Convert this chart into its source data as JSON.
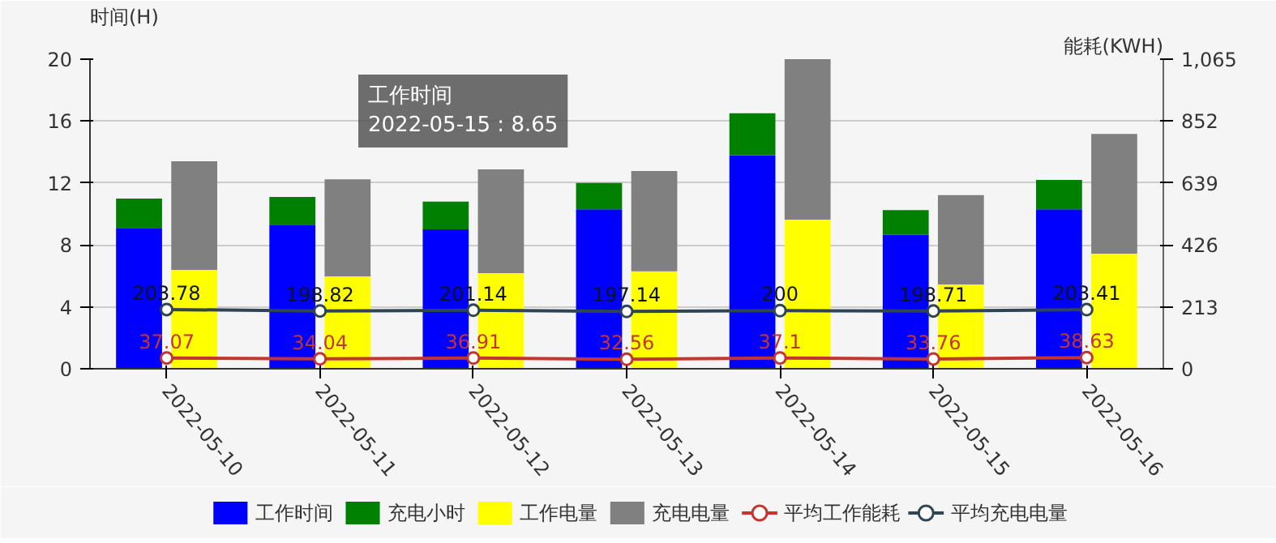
{
  "chart_data": {
    "type": "bar",
    "stacked": true,
    "ylabel": "时间(H)",
    "y2label": "能耗(KWH)",
    "categories": [
      "2022-05-10",
      "2022-05-11",
      "2022-05-12",
      "2022-05-13",
      "2022-05-14",
      "2022-05-15",
      "2022-05-16"
    ],
    "ylim": [
      0,
      20
    ],
    "yticks": [
      0,
      4,
      8,
      12,
      16,
      20
    ],
    "y2lim": [
      0,
      1065
    ],
    "y2ticks": [
      0,
      213,
      426,
      639,
      852,
      {
        "value": 1065,
        "label": "1,065"
      }
    ],
    "grid": "y",
    "legend": "bottom",
    "marker": "circle",
    "line_style": "solid",
    "series": [
      {
        "name": "工作时间",
        "color": "#0000ff",
        "values": [
          9.1,
          9.3,
          9.0,
          10.3,
          13.8,
          8.65,
          10.3
        ]
      },
      {
        "name": "充电小时",
        "color": "#008000",
        "values": [
          1.9,
          1.8,
          1.8,
          1.7,
          2.7,
          1.6,
          1.9
        ]
      },
      {
        "name": "工作电量",
        "axis": "y2",
        "color": "#ffff00",
        "values": [
          340,
          318,
          329,
          335,
          513,
          290,
          396
        ]
      },
      {
        "name": "充电电量",
        "axis": "y2",
        "color": "#808080",
        "values": [
          374,
          334,
          357,
          345,
          552,
          307,
          412
        ]
      },
      {
        "name": "平均工作能耗",
        "type": "line",
        "axis": "y2",
        "color": "#c23531",
        "values": [
          37.07,
          34.04,
          36.91,
          32.56,
          37.1,
          33.76,
          38.63
        ],
        "value_labels": [
          "37.07",
          "34.04",
          "36.91",
          "32.56",
          "37.1",
          "33.76",
          "38.63"
        ]
      },
      {
        "name": "平均充电电量",
        "type": "line",
        "axis": "y2",
        "color": "#2f4554",
        "values": [
          203.78,
          198.82,
          201.14,
          197.14,
          200,
          198.71,
          203.41
        ],
        "value_labels": [
          "203.78",
          "198.82",
          "201.14",
          "197.14",
          "200",
          "198.71",
          "203.41"
        ]
      }
    ],
    "annotations": [
      "工作时间\n2022-05-15 : 8.65"
    ]
  }
}
